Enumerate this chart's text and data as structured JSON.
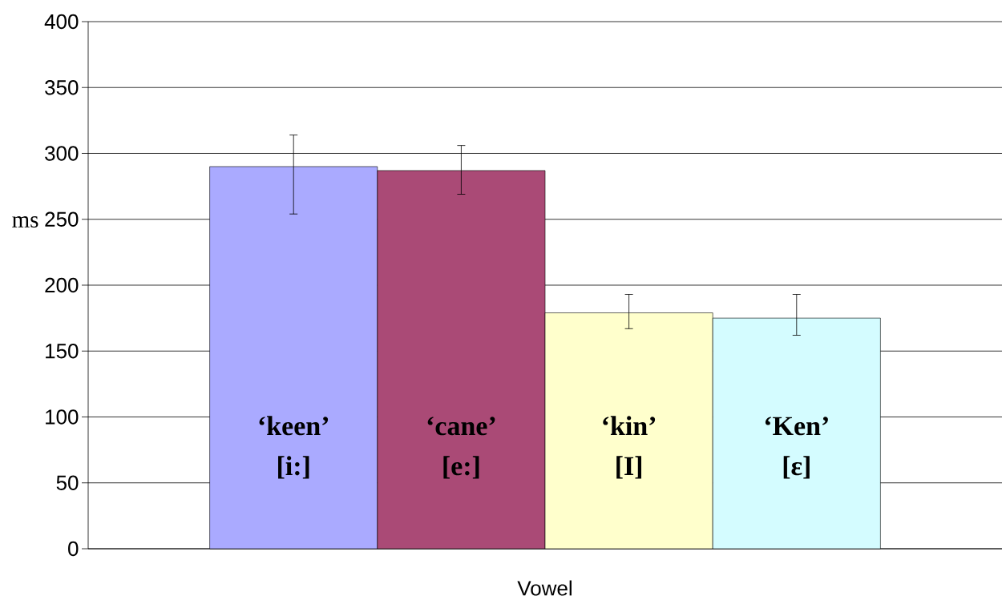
{
  "chart_data": {
    "type": "bar",
    "xlabel": "Vowel",
    "ylabel": "ms",
    "categories": [
      null
    ],
    "ylim": [
      0,
      400
    ],
    "yticks": [
      0,
      50,
      100,
      150,
      200,
      250,
      300,
      350,
      400
    ],
    "grid": "y",
    "series": [
      {
        "name": "‘keen’ [i:]",
        "color": "#aaaaff",
        "values": [
          290
        ],
        "errors": [
          [
            254,
            314
          ]
        ]
      },
      {
        "name": "‘cane’ [e:]",
        "color": "#aa4a76",
        "values": [
          287
        ],
        "errors": [
          [
            269,
            306
          ]
        ]
      },
      {
        "name": "‘kin’ [I]",
        "color": "#ffffcc",
        "values": [
          179
        ],
        "errors": [
          [
            167,
            193
          ]
        ]
      },
      {
        "name": "‘Ken’ [ε]",
        "color": "#d4fcff",
        "values": [
          175
        ],
        "errors": [
          [
            162,
            193
          ]
        ]
      }
    ]
  }
}
